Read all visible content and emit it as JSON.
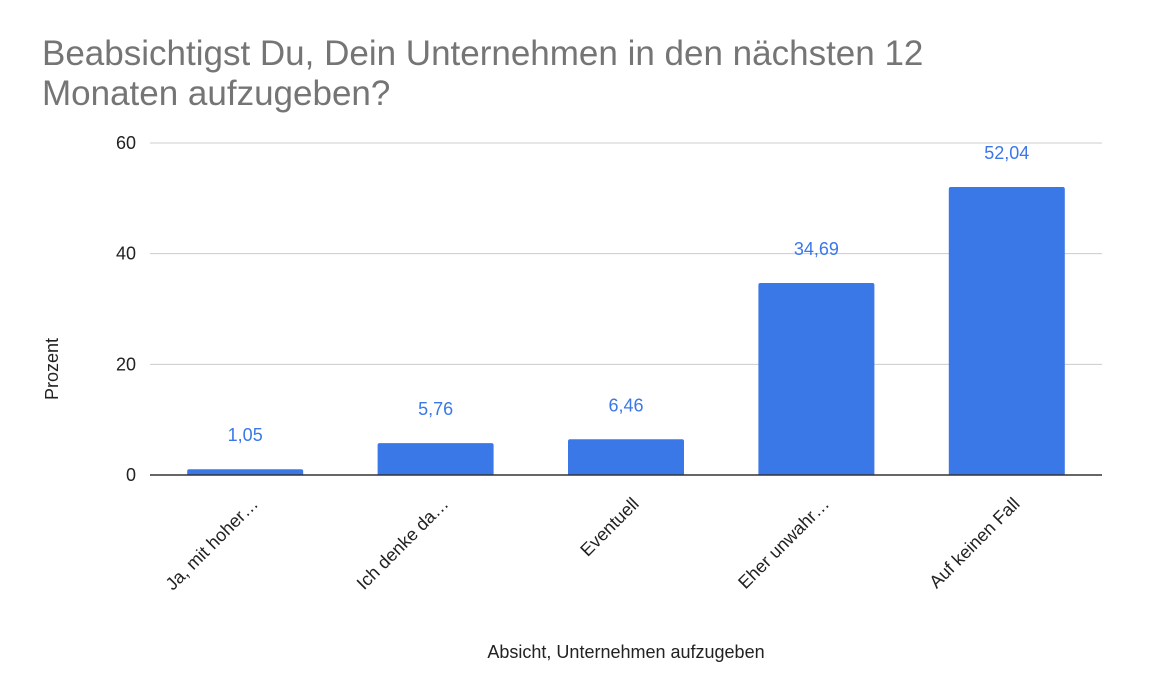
{
  "chart_data": {
    "type": "bar",
    "title": "Beabsichtigst Du, Dein Unternehmen in den nächsten 12 Monaten aufzugeben?",
    "xlabel": "Absicht, Unternehmen aufzugeben",
    "ylabel": "Prozent",
    "categories": [
      "Ja, mit hoher…",
      "Ich denke da…",
      "Eventuell",
      "Eher unwahr…",
      "Auf keinen Fall"
    ],
    "values": [
      1.05,
      5.76,
      6.46,
      34.69,
      52.04
    ],
    "value_labels": [
      "1,05",
      "5,76",
      "6,46",
      "34,69",
      "52,04"
    ],
    "ylim": [
      0,
      60
    ],
    "yticks": [
      0,
      20,
      40,
      60
    ],
    "ytick_labels": [
      "0",
      "20",
      "40",
      "60"
    ],
    "grid": true,
    "legend": "none",
    "bar_color": "#3b78e7",
    "label_color": "#3b78e7"
  }
}
